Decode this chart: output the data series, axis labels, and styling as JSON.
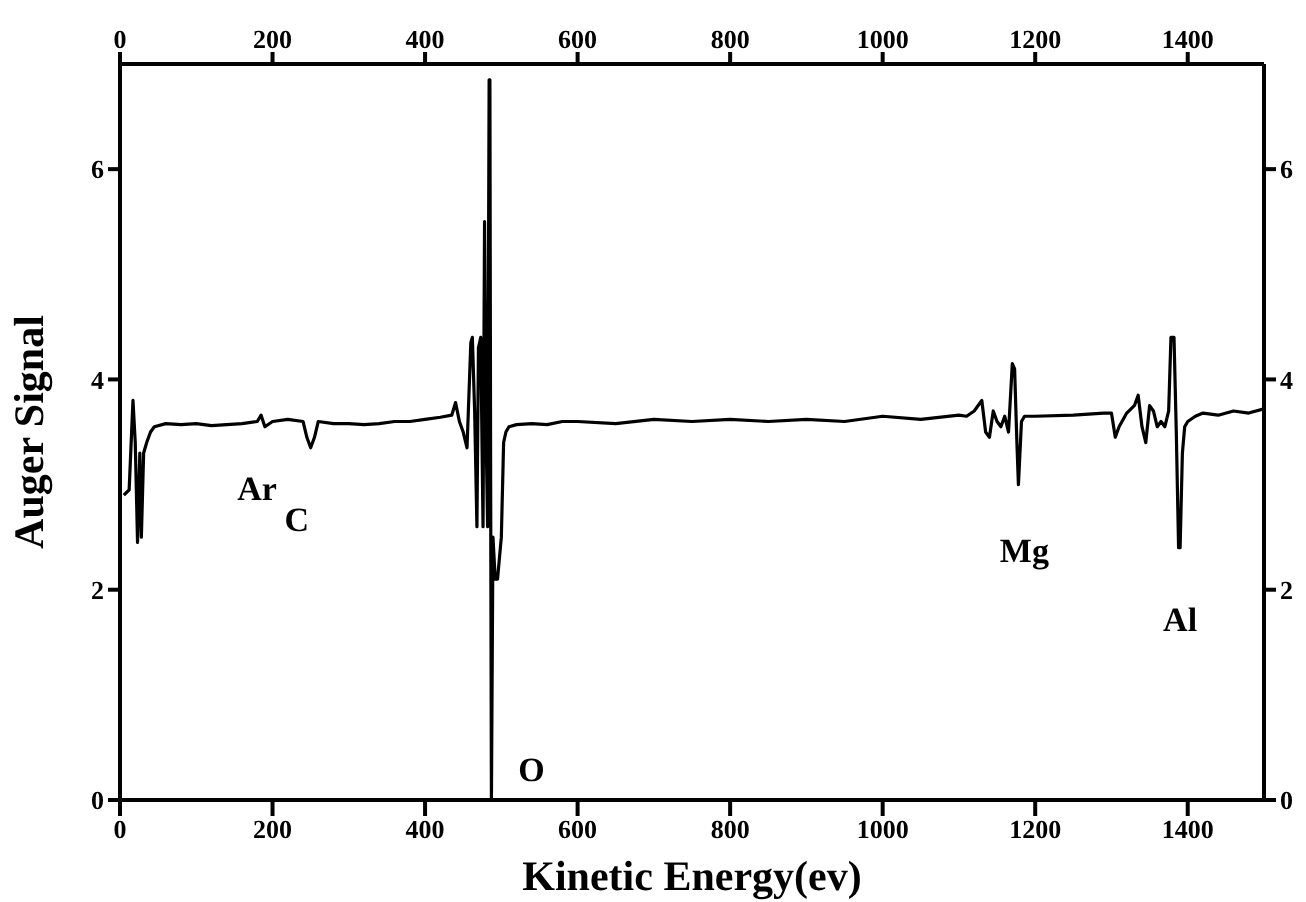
{
  "chart_data": {
    "type": "line",
    "xlabel": "Kinetic Energy(ev)",
    "ylabel": "Auger Signal",
    "xlim": [
      0,
      1500
    ],
    "xticks": [
      0,
      200,
      400,
      600,
      800,
      1000,
      1200,
      1400
    ],
    "x2lim": [
      0,
      1500
    ],
    "x2ticks": [
      0,
      200,
      400,
      600,
      800,
      1000,
      1200,
      1400
    ],
    "ylim": [
      0,
      7
    ],
    "yticks": [
      0,
      2,
      4,
      6
    ],
    "y2lim": [
      0,
      7
    ],
    "y2ticks": [
      0,
      2,
      4,
      6
    ],
    "grid": false,
    "legend": false,
    "marker": "none",
    "line_style": "solid",
    "series": [
      {
        "color": "#000000",
        "x": [
          5,
          12,
          17,
          20,
          23,
          26,
          28,
          31,
          35,
          40,
          45,
          60,
          80,
          100,
          120,
          140,
          160,
          180,
          185,
          190,
          200,
          220,
          240,
          245,
          250,
          255,
          260,
          280,
          300,
          320,
          340,
          360,
          380,
          400,
          420,
          435,
          440,
          445,
          450,
          455,
          460,
          462,
          465,
          468,
          470,
          473,
          476,
          478,
          480,
          482,
          484,
          485,
          486,
          487,
          489,
          492,
          495,
          500,
          503,
          506,
          510,
          520,
          540,
          560,
          580,
          600,
          650,
          700,
          750,
          800,
          850,
          900,
          950,
          1000,
          1050,
          1100,
          1110,
          1120,
          1130,
          1135,
          1140,
          1145,
          1150,
          1155,
          1160,
          1165,
          1170,
          1173,
          1176,
          1178,
          1182,
          1186,
          1200,
          1250,
          1290,
          1300,
          1305,
          1310,
          1320,
          1330,
          1335,
          1340,
          1345,
          1350,
          1355,
          1360,
          1365,
          1370,
          1375,
          1378,
          1382,
          1385,
          1388,
          1390,
          1393,
          1396,
          1400,
          1410,
          1420,
          1440,
          1460,
          1480,
          1500
        ],
        "values": [
          2.9,
          2.95,
          3.8,
          3.4,
          2.45,
          3.3,
          2.5,
          3.3,
          3.4,
          3.5,
          3.55,
          3.58,
          3.57,
          3.58,
          3.56,
          3.57,
          3.58,
          3.6,
          3.66,
          3.55,
          3.6,
          3.62,
          3.6,
          3.45,
          3.35,
          3.45,
          3.6,
          3.58,
          3.58,
          3.57,
          3.58,
          3.6,
          3.6,
          3.62,
          3.64,
          3.66,
          3.78,
          3.6,
          3.5,
          3.35,
          4.35,
          4.4,
          3.7,
          2.6,
          4.3,
          4.4,
          2.6,
          5.5,
          3.5,
          2.6,
          6.85,
          6.85,
          3.0,
          0,
          2.5,
          2.1,
          2.1,
          2.5,
          3.4,
          3.5,
          3.55,
          3.57,
          3.58,
          3.57,
          3.6,
          3.6,
          3.58,
          3.62,
          3.6,
          3.62,
          3.6,
          3.62,
          3.6,
          3.65,
          3.62,
          3.66,
          3.65,
          3.7,
          3.8,
          3.5,
          3.45,
          3.7,
          3.6,
          3.55,
          3.65,
          3.5,
          4.15,
          4.1,
          3.4,
          3.0,
          3.6,
          3.65,
          3.65,
          3.66,
          3.68,
          3.68,
          3.45,
          3.55,
          3.68,
          3.75,
          3.85,
          3.55,
          3.4,
          3.75,
          3.7,
          3.55,
          3.6,
          3.55,
          3.7,
          4.4,
          4.4,
          3.5,
          2.4,
          2.4,
          3.3,
          3.55,
          3.6,
          3.65,
          3.68,
          3.66,
          3.7,
          3.68,
          3.72
        ]
      }
    ],
    "annotations": [
      {
        "text": "Ar",
        "x": 185,
        "y": 3.66
      },
      {
        "text": "C",
        "x": 250,
        "y": 3.35
      },
      {
        "text": "O",
        "x": 487,
        "y": 0
      },
      {
        "text": "Mg",
        "x": 1178,
        "y": 3.0
      },
      {
        "text": "Al",
        "x": 1390,
        "y": 2.4
      }
    ]
  }
}
